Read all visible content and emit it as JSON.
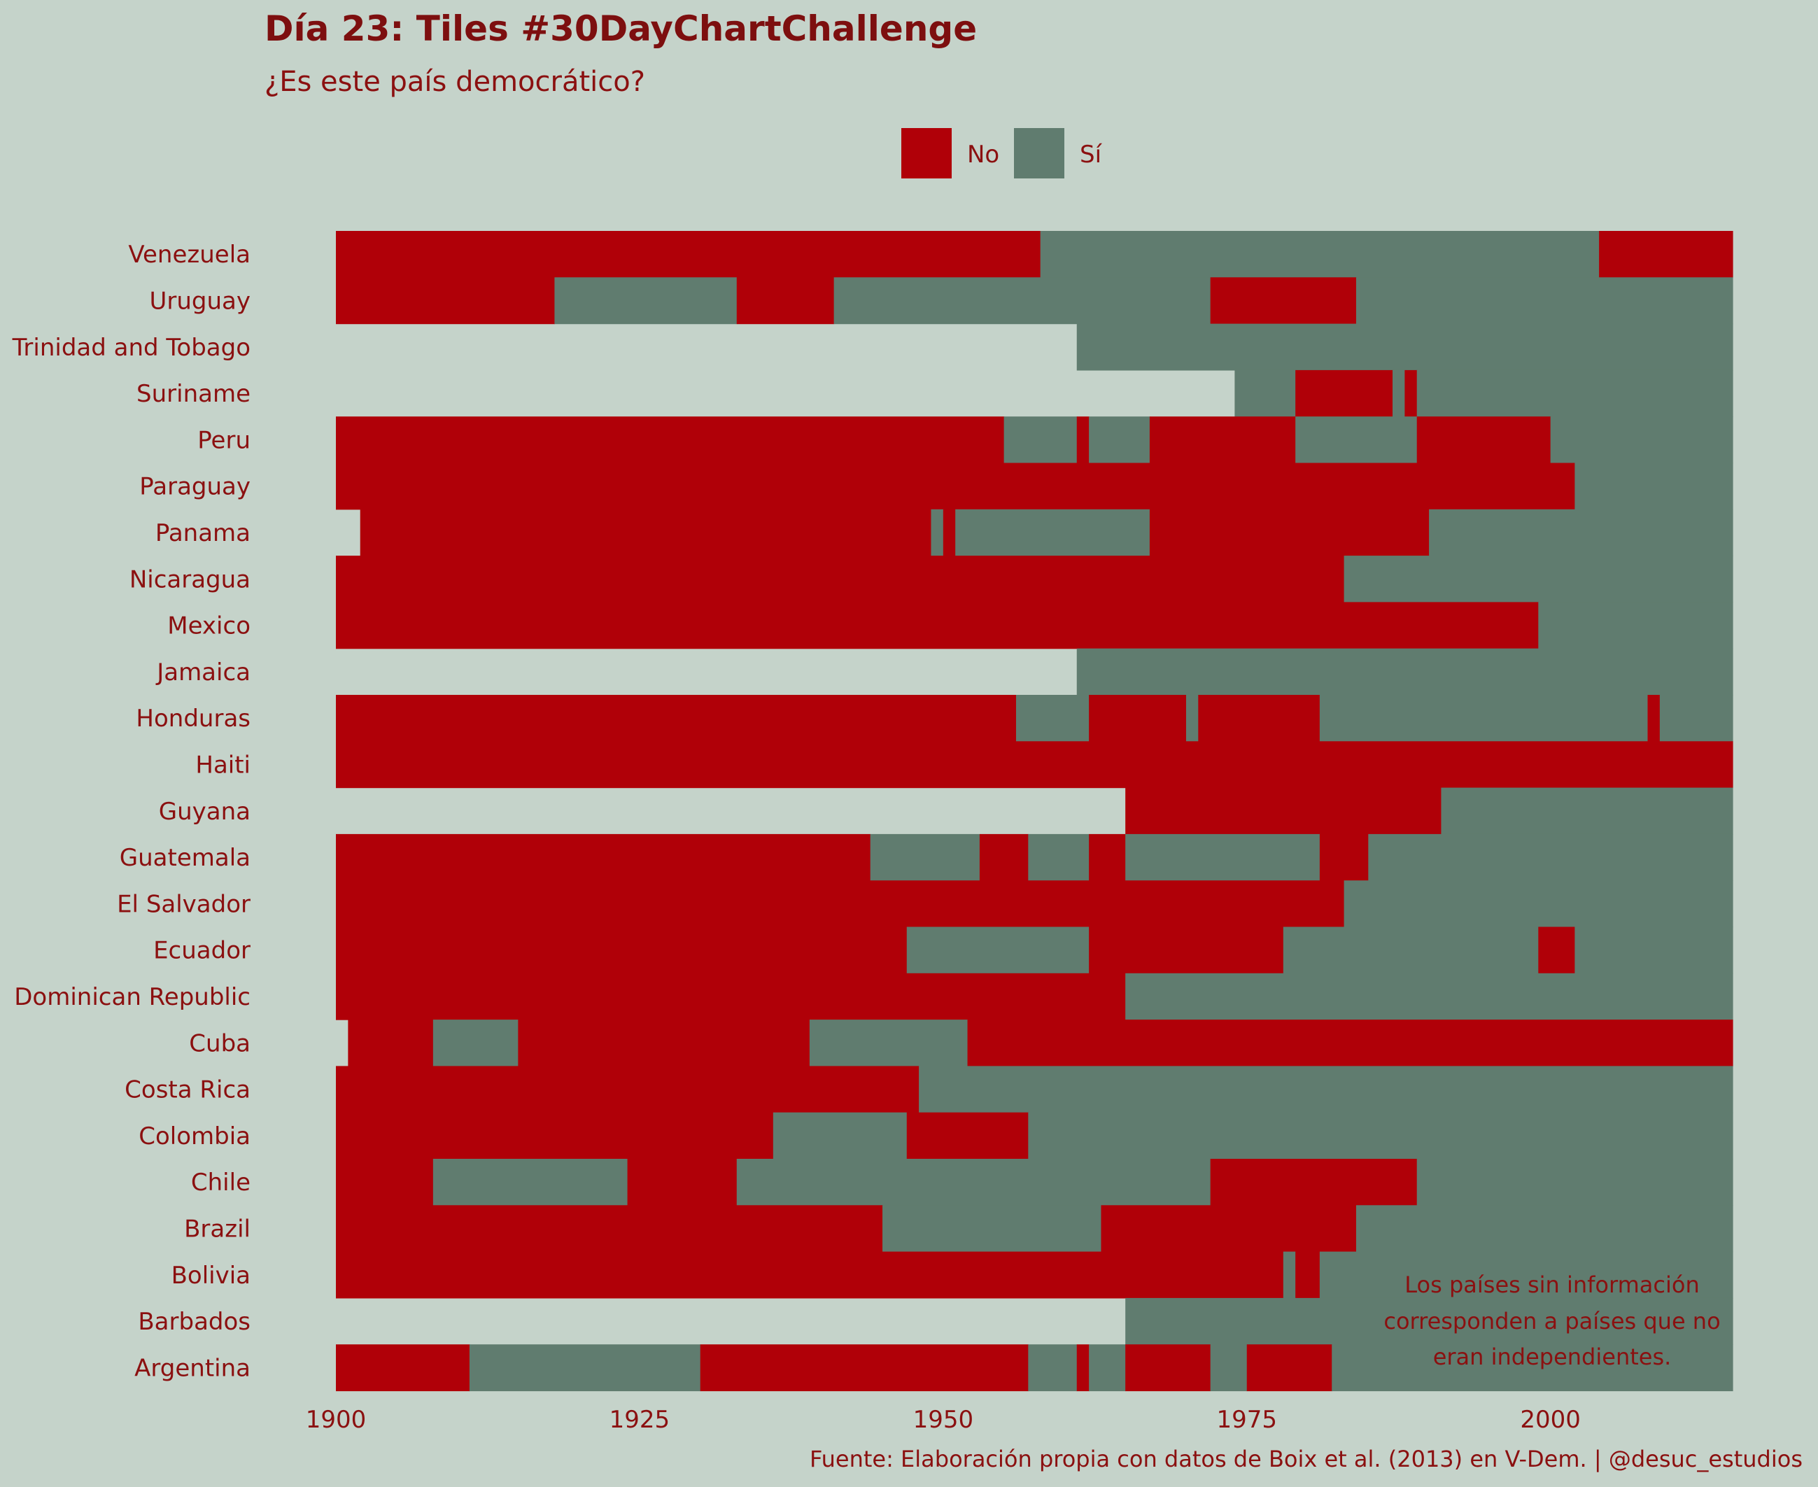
{
  "chart_data": {
    "type": "heatmap",
    "title": "Día 23: Tiles #30DayChartChallenge",
    "subtitle": "¿Es este país democrático?",
    "xlim": [
      1900,
      2015
    ],
    "x_ticks": [
      "1900",
      "1925",
      "1950",
      "1975",
      "2000"
    ],
    "legend": {
      "position": "top",
      "items": [
        {
          "label": "No",
          "color": "#b00008"
        },
        {
          "label": "Sí",
          "color": "#607c6f"
        }
      ]
    },
    "colors": {
      "no": "#b00008",
      "yes": "#607c6f",
      "background": "#c5d3ca"
    },
    "annotation": [
      "Los países sin información",
      "corresponden a países que no",
      "eran independientes."
    ],
    "caption": "Fuente: Elaboración propia con datos de Boix et al. (2013) en V-Dem. | @desuc_estudios",
    "countries": [
      {
        "name": "Venezuela",
        "periods": [
          [
            1900,
            1958,
            "No"
          ],
          [
            1958,
            2004,
            "Sí"
          ],
          [
            2004,
            2015,
            "No"
          ]
        ]
      },
      {
        "name": "Uruguay",
        "periods": [
          [
            1900,
            1918,
            "No"
          ],
          [
            1918,
            1933,
            "Sí"
          ],
          [
            1933,
            1941,
            "No"
          ],
          [
            1941,
            1972,
            "Sí"
          ],
          [
            1972,
            1984,
            "No"
          ],
          [
            1984,
            2015,
            "Sí"
          ]
        ]
      },
      {
        "name": "Trinidad and Tobago",
        "periods": [
          [
            1961,
            2015,
            "Sí"
          ]
        ]
      },
      {
        "name": "Suriname",
        "periods": [
          [
            1974,
            1979,
            "Sí"
          ],
          [
            1979,
            1987,
            "No"
          ],
          [
            1987,
            1988,
            "Sí"
          ],
          [
            1988,
            1989,
            "No"
          ],
          [
            1989,
            2015,
            "Sí"
          ]
        ]
      },
      {
        "name": "Peru",
        "periods": [
          [
            1900,
            1955,
            "No"
          ],
          [
            1955,
            1961,
            "Sí"
          ],
          [
            1961,
            1962,
            "No"
          ],
          [
            1962,
            1967,
            "Sí"
          ],
          [
            1967,
            1979,
            "No"
          ],
          [
            1979,
            1989,
            "Sí"
          ],
          [
            1989,
            2000,
            "No"
          ],
          [
            2000,
            2015,
            "Sí"
          ]
        ]
      },
      {
        "name": "Paraguay",
        "periods": [
          [
            1900,
            2002,
            "No"
          ],
          [
            2002,
            2015,
            "Sí"
          ]
        ]
      },
      {
        "name": "Panama",
        "periods": [
          [
            1902,
            1949,
            "No"
          ],
          [
            1949,
            1950,
            "Sí"
          ],
          [
            1950,
            1951,
            "No"
          ],
          [
            1951,
            1967,
            "Sí"
          ],
          [
            1967,
            1990,
            "No"
          ],
          [
            1990,
            2015,
            "Sí"
          ]
        ]
      },
      {
        "name": "Nicaragua",
        "periods": [
          [
            1900,
            1983,
            "No"
          ],
          [
            1983,
            2015,
            "Sí"
          ]
        ]
      },
      {
        "name": "Mexico",
        "periods": [
          [
            1900,
            1999,
            "No"
          ],
          [
            1999,
            2015,
            "Sí"
          ]
        ]
      },
      {
        "name": "Jamaica",
        "periods": [
          [
            1961,
            2015,
            "Sí"
          ]
        ]
      },
      {
        "name": "Honduras",
        "periods": [
          [
            1900,
            1956,
            "No"
          ],
          [
            1956,
            1962,
            "Sí"
          ],
          [
            1962,
            1970,
            "No"
          ],
          [
            1970,
            1971,
            "Sí"
          ],
          [
            1971,
            1981,
            "No"
          ],
          [
            1981,
            2008,
            "Sí"
          ],
          [
            2008,
            2009,
            "No"
          ],
          [
            2009,
            2015,
            "Sí"
          ]
        ]
      },
      {
        "name": "Haiti",
        "periods": [
          [
            1900,
            2015,
            "No"
          ]
        ]
      },
      {
        "name": "Guyana",
        "periods": [
          [
            1965,
            1991,
            "No"
          ],
          [
            1991,
            2015,
            "Sí"
          ]
        ]
      },
      {
        "name": "Guatemala",
        "periods": [
          [
            1900,
            1944,
            "No"
          ],
          [
            1944,
            1953,
            "Sí"
          ],
          [
            1953,
            1957,
            "No"
          ],
          [
            1957,
            1962,
            "Sí"
          ],
          [
            1962,
            1965,
            "No"
          ],
          [
            1965,
            1981,
            "Sí"
          ],
          [
            1981,
            1985,
            "No"
          ],
          [
            1985,
            2015,
            "Sí"
          ]
        ]
      },
      {
        "name": "El Salvador",
        "periods": [
          [
            1900,
            1983,
            "No"
          ],
          [
            1983,
            2015,
            "Sí"
          ]
        ]
      },
      {
        "name": "Ecuador",
        "periods": [
          [
            1900,
            1947,
            "No"
          ],
          [
            1947,
            1962,
            "Sí"
          ],
          [
            1962,
            1978,
            "No"
          ],
          [
            1978,
            1999,
            "Sí"
          ],
          [
            1999,
            2002,
            "No"
          ],
          [
            2002,
            2015,
            "Sí"
          ]
        ]
      },
      {
        "name": "Dominican Republic",
        "periods": [
          [
            1900,
            1965,
            "No"
          ],
          [
            1965,
            2015,
            "Sí"
          ]
        ]
      },
      {
        "name": "Cuba",
        "periods": [
          [
            1901,
            1908,
            "No"
          ],
          [
            1908,
            1915,
            "Sí"
          ],
          [
            1915,
            1939,
            "No"
          ],
          [
            1939,
            1952,
            "Sí"
          ],
          [
            1952,
            2015,
            "No"
          ]
        ]
      },
      {
        "name": "Costa Rica",
        "periods": [
          [
            1900,
            1948,
            "No"
          ],
          [
            1948,
            2015,
            "Sí"
          ]
        ]
      },
      {
        "name": "Colombia",
        "periods": [
          [
            1900,
            1936,
            "No"
          ],
          [
            1936,
            1947,
            "Sí"
          ],
          [
            1947,
            1957,
            "No"
          ],
          [
            1957,
            2015,
            "Sí"
          ]
        ]
      },
      {
        "name": "Chile",
        "periods": [
          [
            1900,
            1908,
            "No"
          ],
          [
            1908,
            1924,
            "Sí"
          ],
          [
            1924,
            1933,
            "No"
          ],
          [
            1933,
            1972,
            "Sí"
          ],
          [
            1972,
            1989,
            "No"
          ],
          [
            1989,
            2015,
            "Sí"
          ]
        ]
      },
      {
        "name": "Brazil",
        "periods": [
          [
            1900,
            1945,
            "No"
          ],
          [
            1945,
            1963,
            "Sí"
          ],
          [
            1963,
            1984,
            "No"
          ],
          [
            1984,
            2015,
            "Sí"
          ]
        ]
      },
      {
        "name": "Bolivia",
        "periods": [
          [
            1900,
            1978,
            "No"
          ],
          [
            1978,
            1979,
            "Sí"
          ],
          [
            1979,
            1981,
            "No"
          ],
          [
            1981,
            2015,
            "Sí"
          ]
        ]
      },
      {
        "name": "Barbados",
        "periods": [
          [
            1965,
            2015,
            "Sí"
          ]
        ]
      },
      {
        "name": "Argentina",
        "periods": [
          [
            1900,
            1911,
            "No"
          ],
          [
            1911,
            1930,
            "Sí"
          ],
          [
            1930,
            1957,
            "No"
          ],
          [
            1957,
            1961,
            "Sí"
          ],
          [
            1961,
            1962,
            "No"
          ],
          [
            1962,
            1965,
            "Sí"
          ],
          [
            1965,
            1972,
            "No"
          ],
          [
            1972,
            1975,
            "Sí"
          ],
          [
            1975,
            1982,
            "No"
          ],
          [
            1982,
            2015,
            "Sí"
          ]
        ]
      }
    ]
  }
}
